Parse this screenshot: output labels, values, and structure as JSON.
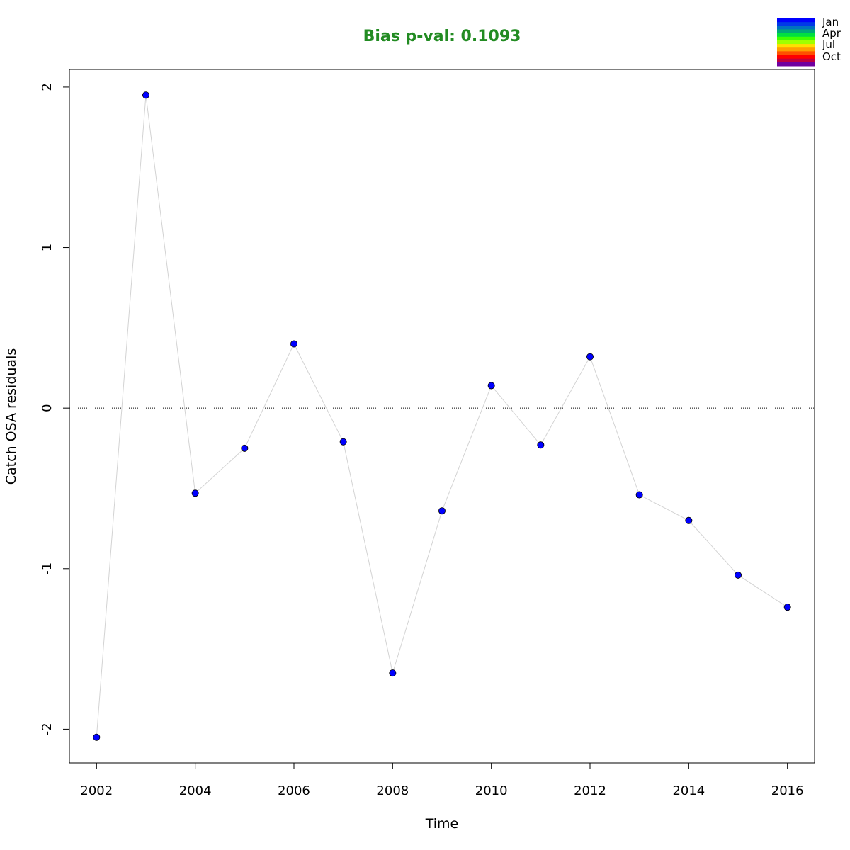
{
  "chart_data": {
    "type": "scatter",
    "title": "Bias p-val: 0.1093",
    "title_color": "#228B22",
    "xlabel": "Time",
    "ylabel": "Catch OSA residuals",
    "xlim": [
      2001.45,
      2016.55
    ],
    "ylim": [
      -2.21,
      2.11
    ],
    "x_ticks": [
      2002,
      2004,
      2006,
      2008,
      2010,
      2012,
      2014,
      2016
    ],
    "y_ticks": [
      -2,
      -1,
      0,
      1,
      2
    ],
    "y_tick_labels": [
      "-2",
      "-1",
      "0",
      "1",
      "2"
    ],
    "reference_line_y": 0,
    "point_color": "#0000FF",
    "line_color": "#D3D3D3",
    "x": [
      2002,
      2003,
      2004,
      2005,
      2006,
      2007,
      2008,
      2009,
      2010,
      2011,
      2012,
      2013,
      2014,
      2015,
      2016
    ],
    "values": [
      -2.05,
      1.95,
      -0.53,
      -0.25,
      0.4,
      -0.21,
      -1.65,
      -0.64,
      0.14,
      -0.23,
      0.32,
      -0.54,
      -0.7,
      -1.04,
      -1.24
    ],
    "legend": {
      "placement": "top-right",
      "labels": [
        "Jan",
        "Apr",
        "Jul",
        "Oct"
      ],
      "colors": [
        "#0000FF",
        "#0038E8",
        "#0070C0",
        "#00A878",
        "#00E040",
        "#40FF00",
        "#A0FF00",
        "#FFE000",
        "#FFA000",
        "#FF5000",
        "#FF0000",
        "#C00040",
        "#7000A0"
      ]
    }
  }
}
